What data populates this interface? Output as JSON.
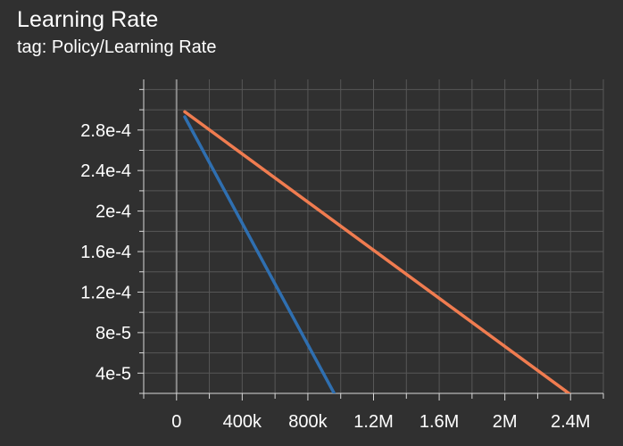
{
  "title": "Learning Rate",
  "subtitle": "tag: Policy/Learning Rate",
  "colors": {
    "background": "#303030",
    "grid": "#575757",
    "axis": "#d9d9d9",
    "zero_line": "#8a8a8a"
  },
  "chart_data": {
    "type": "line",
    "title": "Learning Rate",
    "subtitle": "tag: Policy/Learning Rate",
    "xlabel": "",
    "ylabel": "",
    "xlim": [
      -200000,
      2600000
    ],
    "ylim": [
      2e-05,
      0.00033
    ],
    "x_ticks": [
      0,
      400000,
      800000,
      1200000,
      1600000,
      2000000,
      2400000
    ],
    "x_tick_labels": [
      "0",
      "400k",
      "800k",
      "1.2M",
      "1.6M",
      "2M",
      "2.4M"
    ],
    "y_ticks": [
      4e-05,
      8e-05,
      0.00012,
      0.00016,
      0.0002,
      0.00024,
      0.00028
    ],
    "y_tick_labels": [
      "4e-5",
      "8e-5",
      "1.2e-4",
      "1.6e-4",
      "2e-4",
      "2.4e-4",
      "2.8e-4"
    ],
    "grid": true,
    "series": [
      {
        "color": "#2f6fb0",
        "x": [
          50000,
          960000
        ],
        "y": [
          0.000293,
          2e-05
        ]
      },
      {
        "color": "#f07c50",
        "x": [
          50000,
          2390000
        ],
        "y": [
          0.000298,
          2e-05
        ]
      }
    ]
  }
}
